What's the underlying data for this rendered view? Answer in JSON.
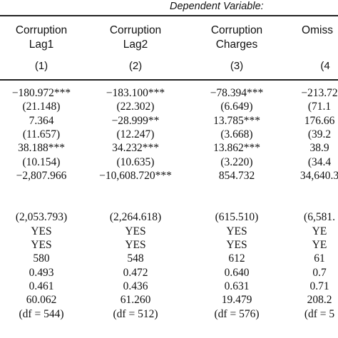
{
  "header": {
    "dependent_variable": "Dependent Variable:",
    "columns": [
      {
        "line1": "Corruption",
        "line2": "Lag1",
        "num": "(1)"
      },
      {
        "line1": "Corruption",
        "line2": "Lag2",
        "num": "(2)"
      },
      {
        "line1": "Corruption",
        "line2": "Charges",
        "num": "(3)"
      },
      {
        "line1": "",
        "line2": "Omiss",
        "num": "(4"
      }
    ]
  },
  "rows": [
    [
      "−180.972***",
      "−183.100***",
      "−78.394***",
      "−213.72"
    ],
    [
      "(21.148)",
      "(22.302)",
      "(6.649)",
      "(71.1"
    ],
    [
      "7.364",
      "−28.999**",
      "13.785***",
      "176.66"
    ],
    [
      "(11.657)",
      "(12.247)",
      "(3.668)",
      "(39.2"
    ],
    [
      "38.188***",
      "34.232***",
      "13.862***",
      "38.9"
    ],
    [
      "(10.154)",
      "(10.635)",
      "(3.220)",
      "(34.4"
    ],
    [
      "−2,807.966",
      "−10,608.720***",
      "854.732",
      "34,640.3"
    ],
    [
      "",
      "",
      "",
      ""
    ],
    [
      "",
      "",
      "",
      ""
    ],
    [
      "(2,053.793)",
      "(2,264.618)",
      "(615.510)",
      "(6,581."
    ],
    [
      "YES",
      "YES",
      "YES",
      "YE"
    ],
    [
      "YES",
      "YES",
      "YES",
      "YE"
    ],
    [
      "580",
      "548",
      "612",
      "61"
    ],
    [
      "0.493",
      "0.472",
      "0.640",
      "0.7"
    ],
    [
      "0.461",
      "0.436",
      "0.631",
      "0.71"
    ],
    [
      "60.062",
      "61.260",
      "19.479",
      "208.2"
    ],
    [
      "(df = 544)",
      "(df = 512)",
      "(df = 576)",
      "(df = 5"
    ]
  ]
}
